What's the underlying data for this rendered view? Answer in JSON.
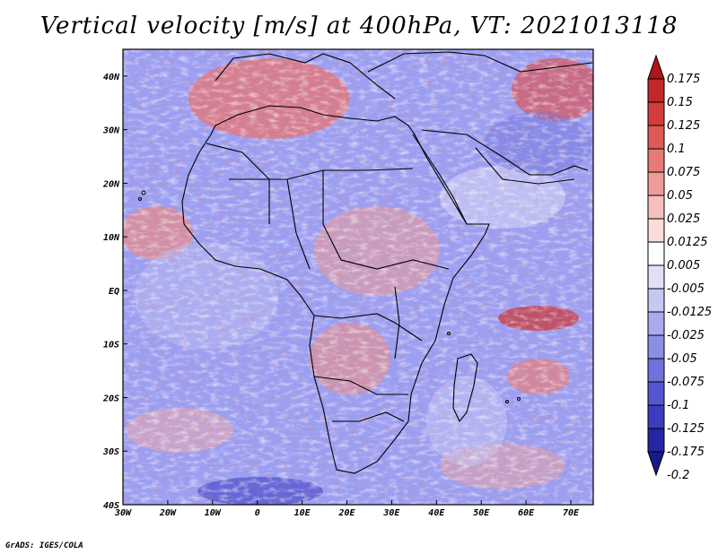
{
  "title": "Vertical velocity [m/s] at 400hPa, VT: 2021013118",
  "credit": "GrADS: IGES/COLA",
  "map": {
    "lon_ticks": [
      "30W",
      "20W",
      "10W",
      "0",
      "10E",
      "20E",
      "30E",
      "40E",
      "50E",
      "60E",
      "70E"
    ],
    "lat_ticks": [
      "40N",
      "30N",
      "20N",
      "10N",
      "EQ",
      "10S",
      "20S",
      "30S",
      "40S"
    ],
    "lon_range": [
      -30,
      75
    ],
    "lat_range": [
      -40,
      45
    ]
  },
  "colorbar": {
    "levels": [
      "0.175",
      "0.15",
      "0.125",
      "0.1",
      "0.075",
      "0.05",
      "0.025",
      "0.0125",
      "0.005",
      "-0.005",
      "-0.0125",
      "-0.025",
      "-0.05",
      "-0.075",
      "-0.1",
      "-0.125",
      "-0.175",
      "-0.2"
    ],
    "colors": [
      "#b01418",
      "#c0282c",
      "#d23c3c",
      "#de5a58",
      "#e67a76",
      "#ee9c98",
      "#f5bfbb",
      "#fadcd9",
      "#ffffff",
      "#e0e0f8",
      "#c6c8f4",
      "#a9abee",
      "#8c8ee6",
      "#7072dc",
      "#5457cf",
      "#3a3dbd",
      "#2326a5",
      "#181a8a"
    ]
  }
}
